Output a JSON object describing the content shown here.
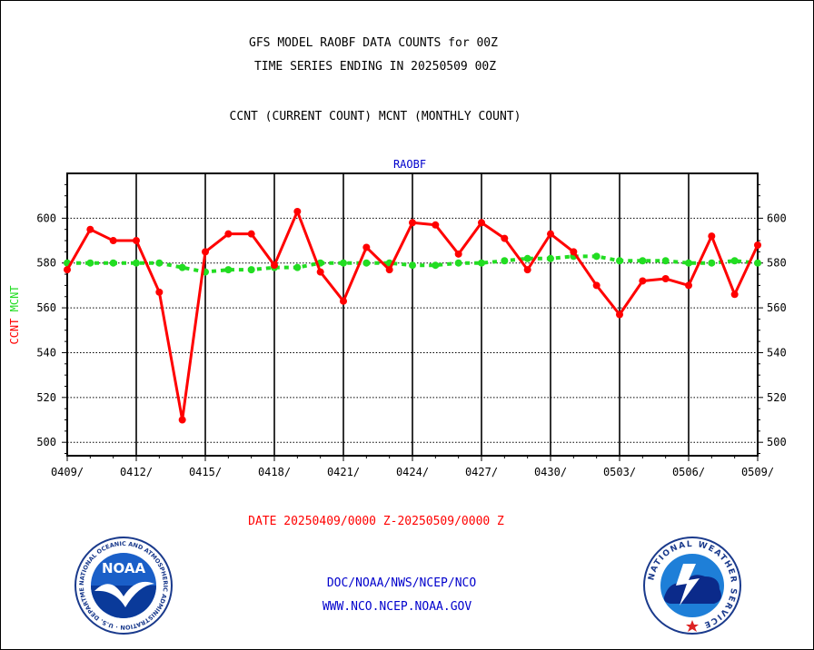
{
  "header": {
    "title_line1": "GFS MODEL RAOBF DATA COUNTS for 00Z",
    "title_line2": "TIME SERIES ENDING IN 20250509 00Z",
    "subtitle": "CCNT (CURRENT COUNT) MCNT (MONTHLY COUNT)"
  },
  "footer": {
    "date_range": "DATE 20250409/0000 Z-20250509/0000 Z",
    "org_line": "DOC/NOAA/NWS/NCEP/NCO",
    "url_line": "WWW.NCO.NCEP.NOAA.GOV",
    "noaa_logo_text": "NOAA",
    "noaa_ring_text": "NATIONAL OCEANIC AND ATMOSPHERIC ADMINISTRATION · U.S. DEPARTMENT OF COMMERCE ·",
    "nws_ring_text": "NATIONAL WEATHER SERVICE"
  },
  "colors": {
    "ccnt": "#ff0000",
    "mcnt": "#22dd22",
    "panel_title": "#0000cc",
    "footer_text": "#0000cc",
    "date_text": "#ff0000",
    "grid": "#000000"
  },
  "chart_data": {
    "type": "line",
    "title": "RAOBF",
    "ylabel_parts": [
      {
        "text": "CCNT",
        "color": "#ff0000"
      },
      {
        "text": "MCNT",
        "color": "#22dd22"
      }
    ],
    "ylim": [
      494,
      620
    ],
    "yticks": [
      500,
      520,
      540,
      560,
      580,
      600
    ],
    "xlim": [
      0,
      30
    ],
    "xticks": [
      0,
      3,
      6,
      9,
      12,
      15,
      18,
      21,
      24,
      27,
      30
    ],
    "xtick_labels": [
      "0409/",
      "0412/",
      "0415/",
      "0418/",
      "0421/",
      "0424/",
      "0427/",
      "0430/",
      "0503/",
      "0506/",
      "0509/"
    ],
    "grid": true,
    "series": [
      {
        "name": "CCNT",
        "color": "#ff0000",
        "style": "solid",
        "values": [
          577,
          595,
          590,
          590,
          567,
          510,
          585,
          593,
          593,
          579,
          603,
          576,
          563,
          587,
          577,
          598,
          597,
          584,
          598,
          591,
          577,
          593,
          585,
          570,
          557,
          572,
          573,
          570,
          592,
          566,
          588
        ]
      },
      {
        "name": "MCNT",
        "color": "#22dd22",
        "style": "dashed",
        "values": [
          580,
          580,
          580,
          580,
          580,
          578,
          576,
          577,
          577,
          578,
          578,
          580,
          580,
          580,
          580,
          579,
          579,
          580,
          580,
          581,
          582,
          582,
          583,
          583,
          581,
          581,
          581,
          580,
          580,
          581,
          580
        ]
      }
    ]
  }
}
